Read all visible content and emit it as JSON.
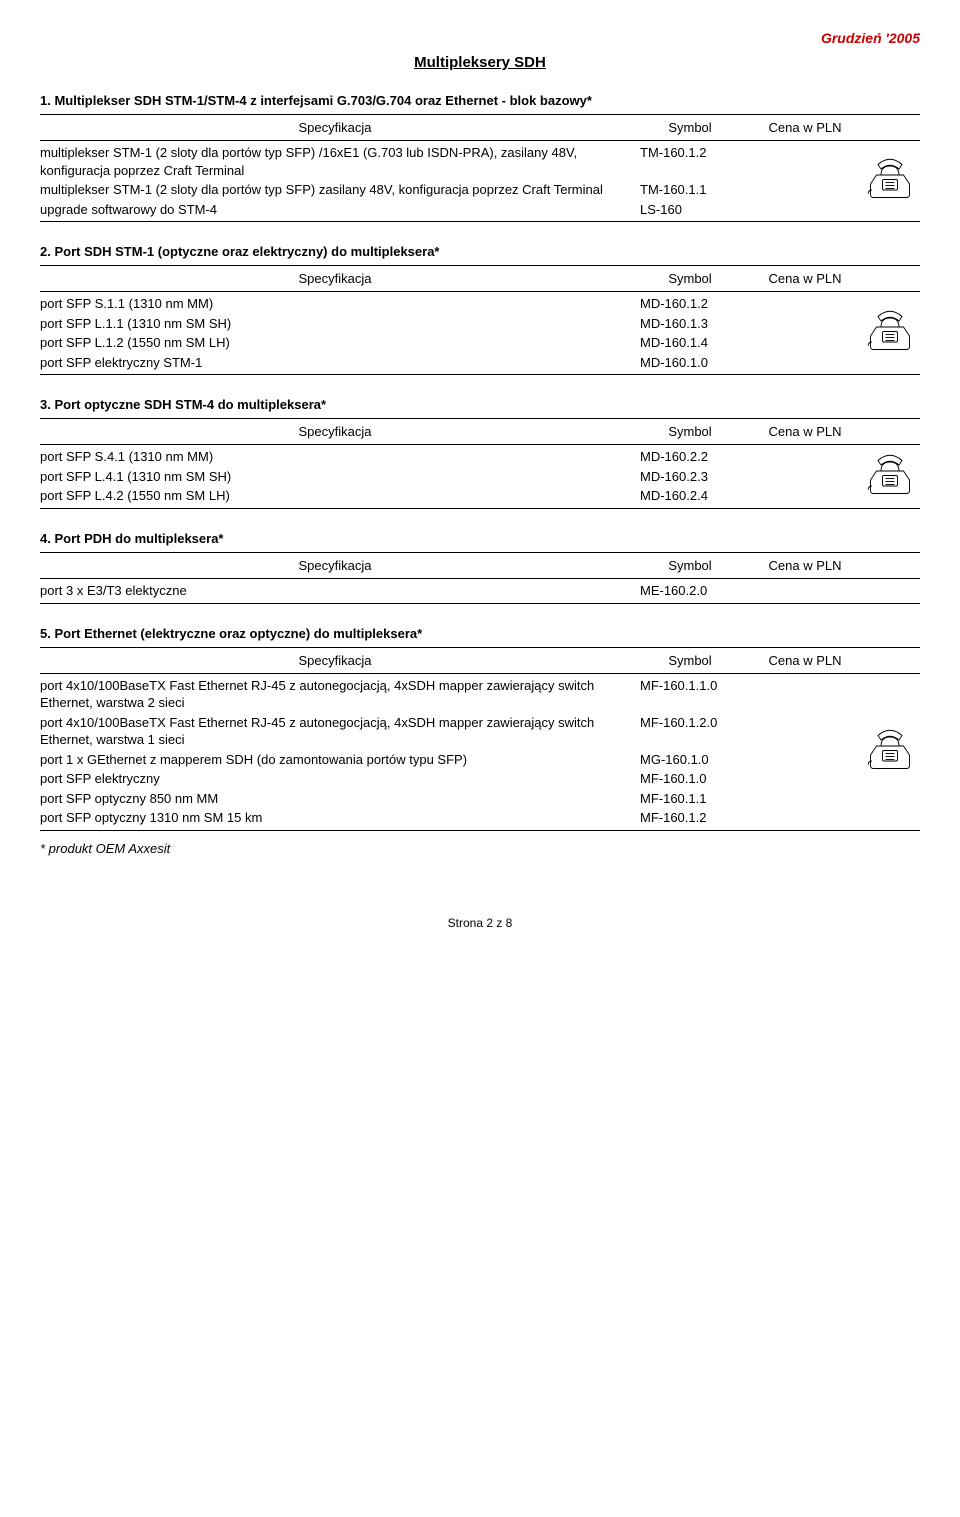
{
  "header_date": "Grudzień '2005",
  "page_title": "Multipleksery SDH",
  "col_spec": "Specyfikacja",
  "col_symbol": "Symbol",
  "col_price": "Cena w PLN",
  "sections": [
    {
      "heading": "1. Multiplekser SDH STM-1/STM-4 z interfejsami G.703/G.704 oraz Ethernet - blok bazowy*",
      "rows": [
        {
          "spec": "multiplekser STM-1 (2 sloty dla portów typ SFP) /16xE1 (G.703 lub ISDN-PRA), zasilany 48V, konfiguracja poprzez Craft Terminal",
          "symbol": "TM-160.1.2"
        },
        {
          "spec": "multiplekser STM-1 (2 sloty dla portów typ SFP) zasilany 48V, konfiguracja poprzez Craft Terminal",
          "symbol": "TM-160.1.1"
        },
        {
          "spec": "upgrade softwarowy do STM-4",
          "symbol": "LS-160"
        }
      ]
    },
    {
      "heading": "2. Port SDH STM-1 (optyczne oraz elektryczny) do multipleksera*",
      "rows": [
        {
          "spec": "port SFP S.1.1 (1310 nm MM)",
          "symbol": "MD-160.1.2"
        },
        {
          "spec": "port SFP L.1.1 (1310 nm SM SH)",
          "symbol": "MD-160.1.3"
        },
        {
          "spec": "port SFP L.1.2 (1550 nm SM LH)",
          "symbol": "MD-160.1.4"
        },
        {
          "spec": "port SFP elektryczny  STM-1",
          "symbol": "MD-160.1.0"
        }
      ]
    },
    {
      "heading": "3. Port optyczne SDH STM-4 do multipleksera*",
      "rows": [
        {
          "spec": "port SFP S.4.1 (1310 nm MM)",
          "symbol": "MD-160.2.2"
        },
        {
          "spec": "port SFP L.4.1 (1310 nm SM SH)",
          "symbol": "MD-160.2.3"
        },
        {
          "spec": "port SFP L.4.2 (1550 nm SM LH)",
          "symbol": "MD-160.2.4"
        }
      ]
    },
    {
      "heading": "4. Port PDH do multipleksera*",
      "rows": [
        {
          "spec": "port 3 x E3/T3 elektyczne",
          "symbol": "ME-160.2.0"
        }
      ]
    },
    {
      "heading": "5. Port Ethernet (elektryczne oraz optyczne) do multipleksera*",
      "rows": [
        {
          "spec": "port 4x10/100BaseTX Fast Ethernet RJ-45 z autonegocjacją, 4xSDH mapper zawierający switch Ethernet, warstwa 2 sieci",
          "symbol": "MF-160.1.1.0"
        },
        {
          "spec": "port 4x10/100BaseTX Fast Ethernet RJ-45 z autonegocjacją, 4xSDH mapper zawierający switch Ethernet, warstwa 1 sieci",
          "symbol": "MF-160.1.2.0"
        },
        {
          "spec": "port 1 x GEthernet z mapperem SDH (do zamontowania portów typu SFP)",
          "symbol": "MG-160.1.0"
        },
        {
          "spec": "port SFP elektryczny",
          "symbol": "MF-160.1.0"
        },
        {
          "spec": "port SFP optyczny 850 nm MM",
          "symbol": "MF-160.1.1"
        },
        {
          "spec": "port SFP optyczny 1310 nm SM 15 km",
          "symbol": "MF-160.1.2"
        }
      ]
    }
  ],
  "merged_phone_sections": [
    4,
    5
  ],
  "footnote": "* produkt OEM Axxesit",
  "footer": "Strona 2 z 8"
}
